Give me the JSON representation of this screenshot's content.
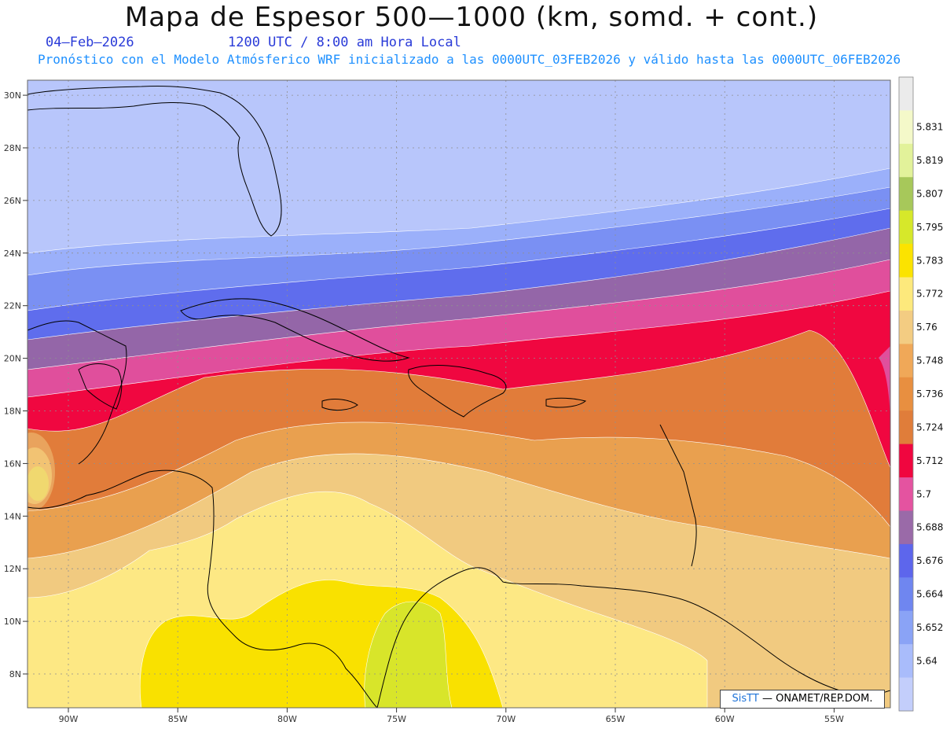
{
  "title": "Mapa de Espesor 500—1000 (km, somd. + cont.)",
  "date_label": "04—Feb—2026",
  "time_label": "1200 UTC / 8:00 am Hora Local",
  "forecast_line": "Pronóstico con el Modelo Atmósferico WRF inicializado a las 0000UTC_03FEB2026 y válido hasta las  0000UTC_06FEB2026",
  "credit": {
    "brand": "SisTT",
    "text": "— ONAMET/REP.DOM."
  },
  "axes": {
    "lon_ticks": [
      "90W",
      "85W",
      "80W",
      "75W",
      "70W",
      "65W",
      "60W",
      "55W"
    ],
    "lat_ticks": [
      "8N",
      "10N",
      "12N",
      "14N",
      "16N",
      "18N",
      "20N",
      "22N",
      "24N",
      "26N",
      "28N",
      "30N"
    ]
  },
  "colorbar": {
    "labels": [
      "5.64",
      "5.652",
      "5.664",
      "5.676",
      "5.688",
      "5.7",
      "5.712",
      "5.724",
      "5.736",
      "5.748",
      "5.76",
      "5.772",
      "5.783",
      "5.795",
      "5.807",
      "5.819",
      "5.831"
    ],
    "colors": [
      "#c3cefb",
      "#a9bcfb",
      "#8aa3f6",
      "#6f86f0",
      "#5d66ec",
      "#9a6aa8",
      "#e453a0",
      "#f0063f",
      "#e07d3a",
      "#e88f40",
      "#f0a858",
      "#f3cc82",
      "#fde97c",
      "#fbe300",
      "#d6e82a",
      "#a7c85a",
      "#e2f29a",
      "#f4f9c9",
      "#ebebeb"
    ]
  },
  "map_bands": {
    "band_colors": [
      "#b8c6fb",
      "#9bb0fa",
      "#7a90f3",
      "#5f6ded",
      "#9466a8",
      "#e04f9c",
      "#f00740",
      "#e17c3a",
      "#e9a04f",
      "#f1ca80",
      "#fde884",
      "#f9e100",
      "#d8e52a"
    ]
  }
}
